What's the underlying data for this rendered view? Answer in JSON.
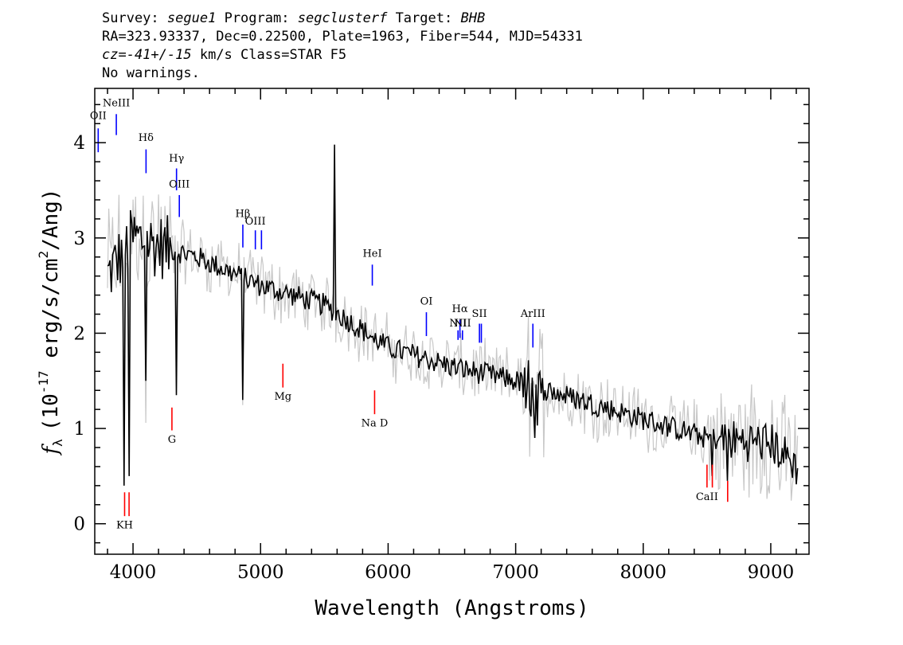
{
  "header": {
    "line1": {
      "survey_label": "Survey:",
      "survey": "segue1",
      "program_label": "Program:",
      "program": "segclusterf",
      "target_label": "Target:",
      "target": "BHB"
    },
    "line2": "RA=323.93337, Dec=0.22500, Plate=1963, Fiber=544, MJD=54331",
    "line3": {
      "cz": "cz=-41+/-15",
      "units": "km/s",
      "class": "Class=STAR F5"
    },
    "line4": "No warnings."
  },
  "chart_data": {
    "type": "line",
    "xlabel": "Wavelength (Angstroms)",
    "ylabel_parts": {
      "f": "f",
      "sub": "λ",
      "open": "(10",
      "exp": "-17",
      "mid": " erg/s/cm",
      "sq": "2",
      "close": "/Ang)"
    },
    "xlim": [
      3700,
      9300
    ],
    "ylim": [
      -0.32,
      4.57
    ],
    "xticks": [
      4000,
      5000,
      6000,
      7000,
      8000,
      9000
    ],
    "yticks": [
      0,
      1,
      2,
      3,
      4
    ],
    "xtick_labels": [
      "4000",
      "5000",
      "6000",
      "7000",
      "8000",
      "9000"
    ],
    "ytick_labels": [
      "0",
      "1",
      "2",
      "3",
      "4"
    ],
    "series": [
      {
        "role": "flux",
        "color": "#000000",
        "x_start": 3800,
        "x_end": 9210,
        "step": 10,
        "continuum": [
          [
            3800,
            2.6
          ],
          [
            4000,
            3.0
          ],
          [
            4500,
            2.8
          ],
          [
            5000,
            2.5
          ],
          [
            5500,
            2.3
          ],
          [
            6000,
            1.85
          ],
          [
            6500,
            1.65
          ],
          [
            7000,
            1.5
          ],
          [
            7500,
            1.3
          ],
          [
            8000,
            1.1
          ],
          [
            8500,
            0.9
          ],
          [
            9000,
            0.85
          ],
          [
            9210,
            0.6
          ]
        ]
      },
      {
        "role": "error",
        "color": "#c8c8c8"
      }
    ],
    "features": [
      {
        "x": 3934,
        "y": 0.4
      },
      {
        "x": 3969,
        "y": 0.5
      },
      {
        "x": 4102,
        "y": 1.5
      },
      {
        "x": 4340,
        "y": 1.35
      },
      {
        "x": 4861,
        "y": 1.3
      },
      {
        "x": 5577,
        "y": 3.98
      },
      {
        "x": 5890,
        "y": 1.9
      },
      {
        "x": 7150,
        "y": 0.9
      },
      {
        "x": 8542,
        "y": 0.5
      },
      {
        "x": 8662,
        "y": 0.45
      }
    ],
    "emission_lines": [
      {
        "label": "OII",
        "x": 3727,
        "y0": 3.9,
        "y1": 4.15,
        "label_y": 4.25
      },
      {
        "label": "NeIII",
        "x": 3869,
        "y0": 4.08,
        "y1": 4.3,
        "label_y": 4.38
      },
      {
        "label": "Hδ",
        "x": 4102,
        "y0": 3.68,
        "y1": 3.93,
        "label_y": 4.02
      },
      {
        "label": "Hγ",
        "x": 4341,
        "y0": 3.5,
        "y1": 3.73,
        "label_y": 3.8
      },
      {
        "label": "OIII",
        "x": 4363,
        "y0": 3.22,
        "y1": 3.45,
        "label_y": 3.53
      },
      {
        "label": "Hβ",
        "x": 4861,
        "y0": 2.9,
        "y1": 3.14,
        "label_y": 3.22
      },
      {
        "label": "OIII",
        "x": 4959,
        "y0": 2.88,
        "y1": 3.08,
        "label_y": 3.14
      },
      {
        "label": "",
        "x": 5007,
        "y0": 2.88,
        "y1": 3.08,
        "label_y": 3.14
      },
      {
        "label": "HeI",
        "x": 5876,
        "y0": 2.5,
        "y1": 2.72,
        "label_y": 2.8
      },
      {
        "label": "OI",
        "x": 6300,
        "y0": 1.97,
        "y1": 2.22,
        "label_y": 2.3
      },
      {
        "label": "NII",
        "x": 6548,
        "y0": 1.93,
        "y1": 2.03,
        "label_y": 2.07
      },
      {
        "label": "Hα",
        "x": 6563,
        "y0": 1.95,
        "y1": 2.14,
        "label_y": 2.22
      },
      {
        "label": "NII",
        "x": 6583,
        "y0": 1.93,
        "y1": 2.03,
        "label_y": 2.07
      },
      {
        "label": "SII",
        "x": 6716,
        "y0": 1.9,
        "y1": 2.1,
        "label_y": 2.17
      },
      {
        "label": "",
        "x": 6731,
        "y0": 1.9,
        "y1": 2.1,
        "label_y": 2.17
      },
      {
        "label": "ArIII",
        "x": 7135,
        "y0": 1.85,
        "y1": 2.1,
        "label_y": 2.17
      }
    ],
    "absorption_lines": [
      {
        "label": "KH",
        "x": 3934,
        "y0": 0.08,
        "y1": 0.33,
        "label_y": -0.05
      },
      {
        "label": "",
        "x": 3969,
        "y0": 0.08,
        "y1": 0.33,
        "label_y": -0.05
      },
      {
        "label": "G",
        "x": 4305,
        "y0": 0.98,
        "y1": 1.22,
        "label_y": 0.85
      },
      {
        "label": "Mg",
        "x": 5175,
        "y0": 1.43,
        "y1": 1.68,
        "label_y": 1.3
      },
      {
        "label": "Na D",
        "x": 5894,
        "y0": 1.15,
        "y1": 1.4,
        "label_y": 1.02
      },
      {
        "label": "CaII",
        "x": 8500,
        "y0": 0.38,
        "y1": 0.62,
        "label_y": 0.25
      },
      {
        "label": "",
        "x": 8542,
        "y0": 0.38,
        "y1": 0.62,
        "label_y": 0.25
      },
      {
        "label": "",
        "x": 8662,
        "y0": 0.23,
        "y1": 0.45,
        "label_y": 0.25
      }
    ],
    "colors": {
      "emission": "#0000ff",
      "absorption": "#ff0000"
    }
  }
}
